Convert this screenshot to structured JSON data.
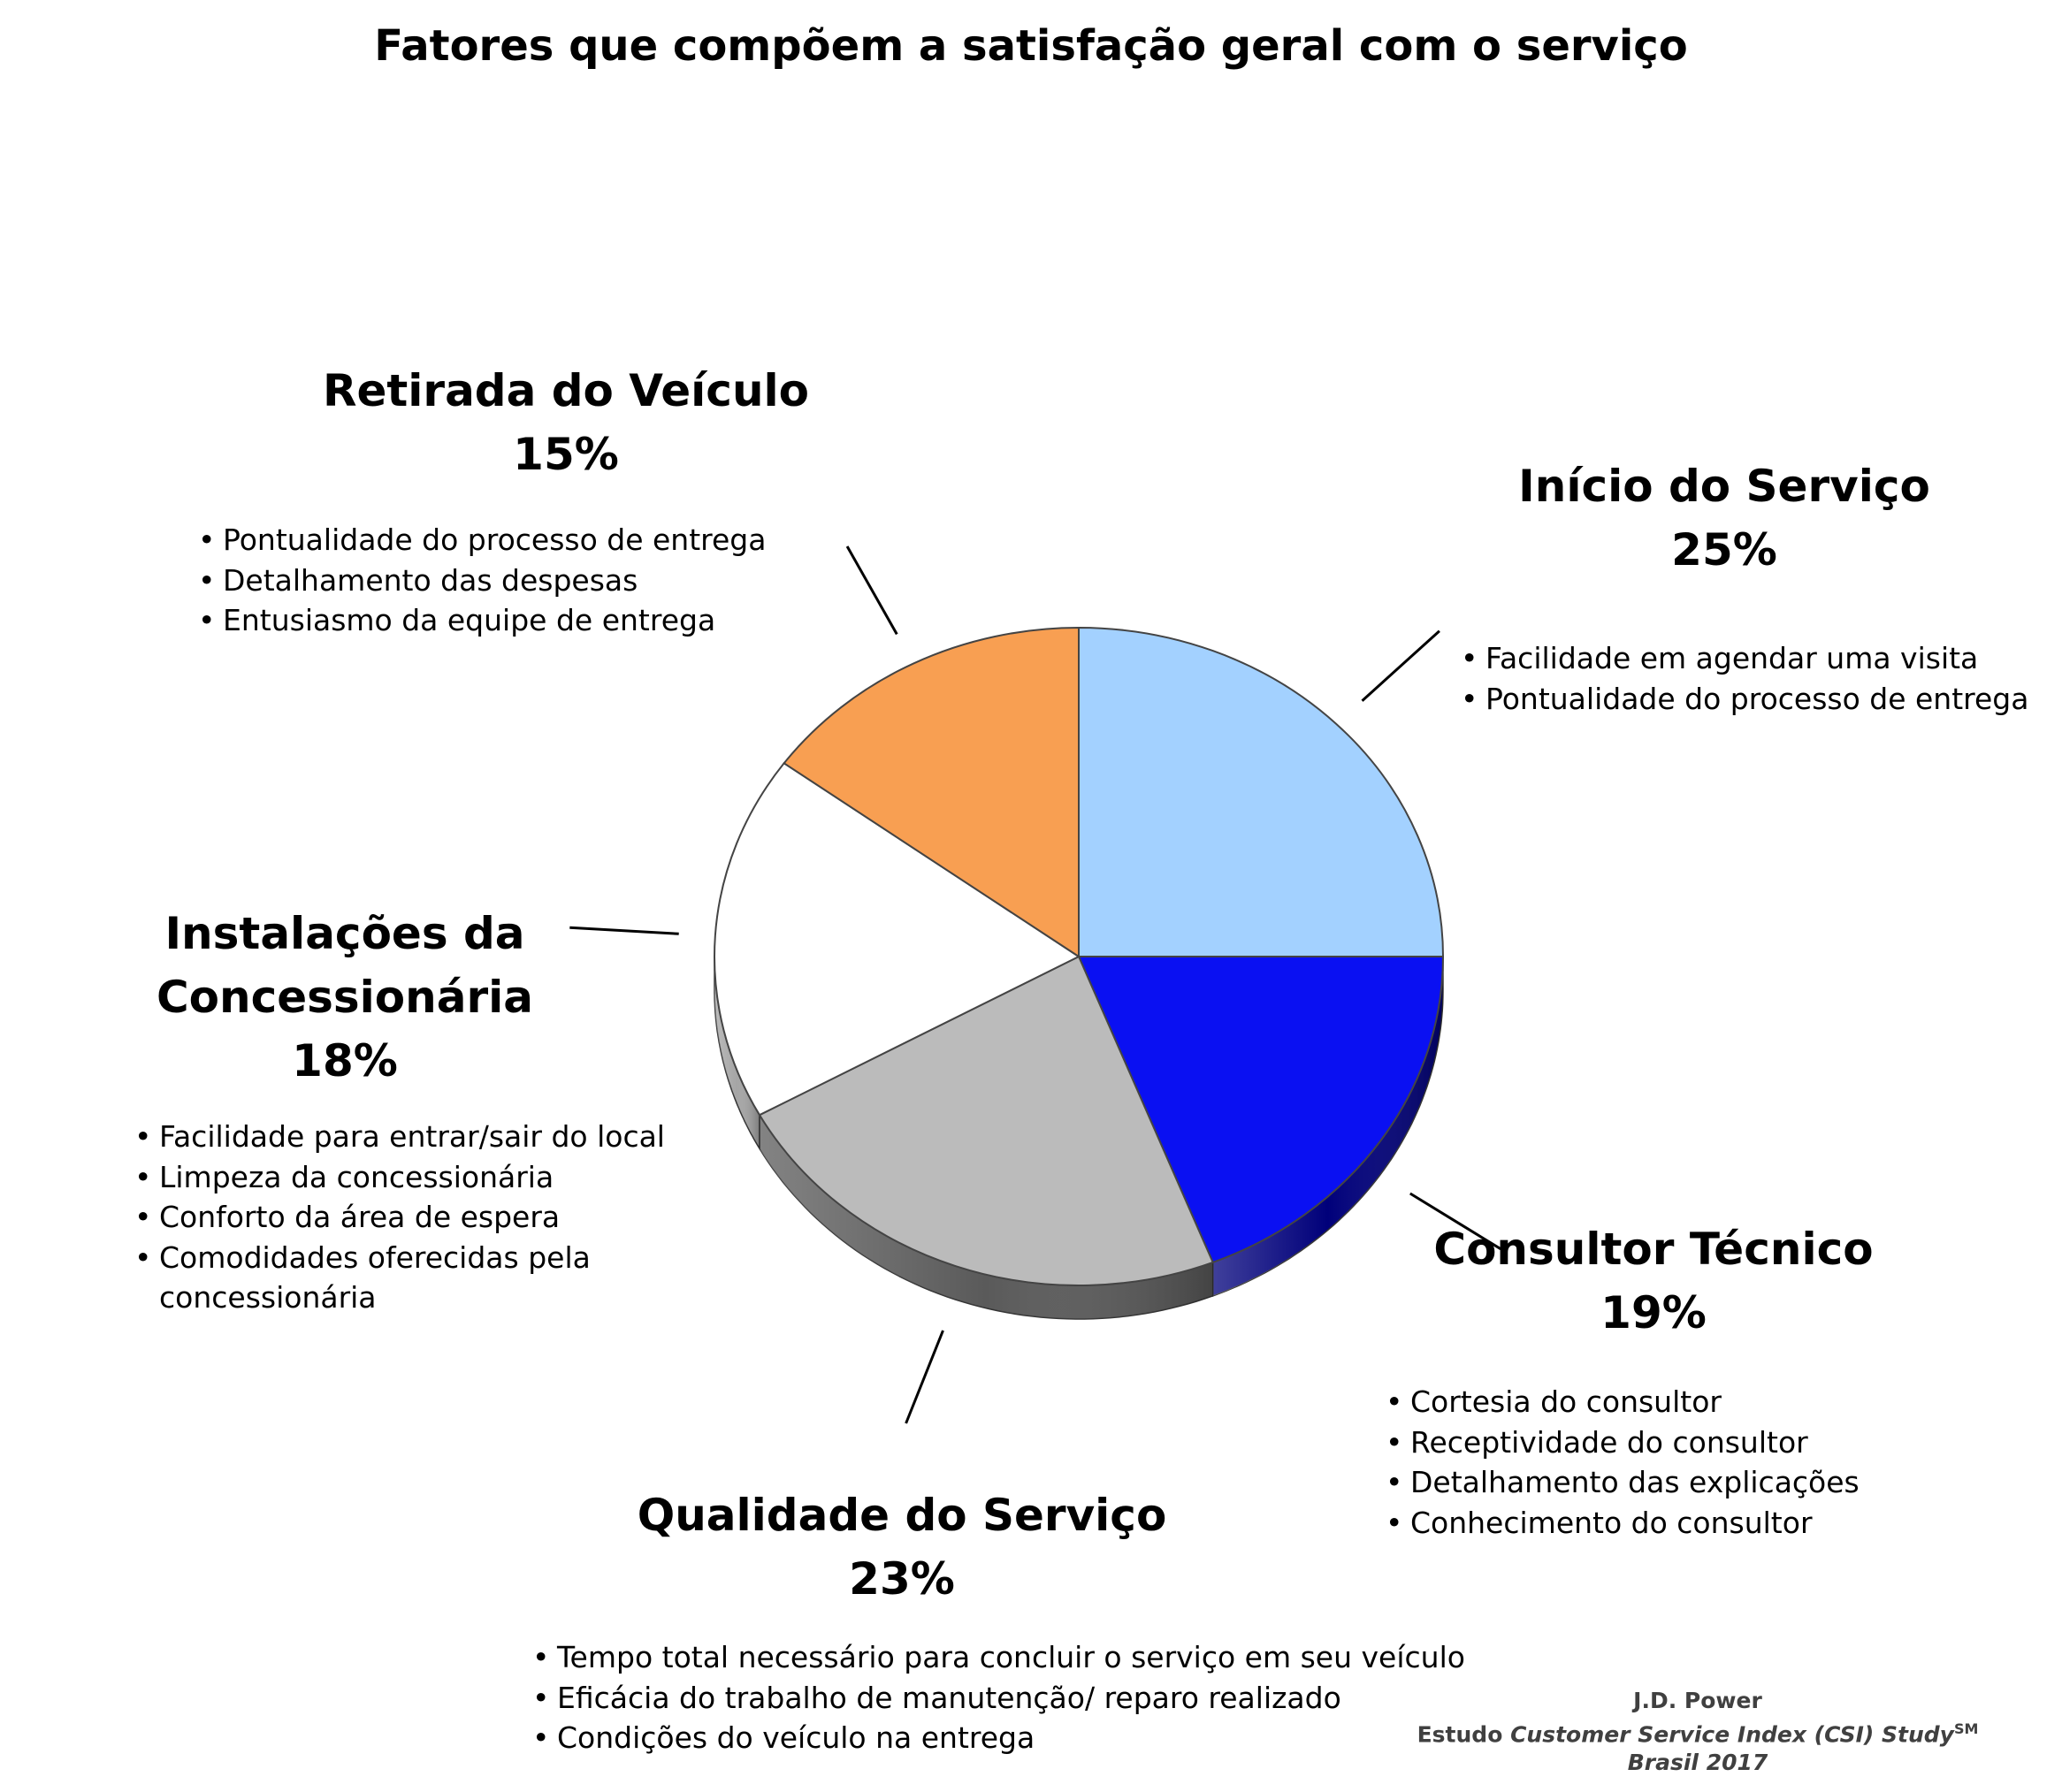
{
  "title": "Fatores que compõem a satisfação geral com o serviço",
  "chart_data": {
    "type": "pie",
    "title": "Fatores que compõem a satisfação geral com o serviço",
    "slices": [
      {
        "name": "Início do Serviço",
        "name_lines": [
          "Início do Serviço"
        ],
        "value": 25,
        "pct_label": "25%",
        "color": "#A3D1FF",
        "side_color": "#6E9ECF",
        "bullets": [
          "Facilidade em agendar uma visita",
          "Pontualidade do processo de entrega"
        ]
      },
      {
        "name": "Consultor Técnico",
        "name_lines": [
          "Consultor Técnico"
        ],
        "value": 19,
        "pct_label": "19%",
        "color": "#0A10F2",
        "side_color": "#00007A",
        "bullets": [
          "Cortesia do consultor",
          "Receptividade do consultor",
          "Detalhamento das  explicações",
          "Conhecimento do consultor"
        ]
      },
      {
        "name": "Qualidade do Serviço",
        "name_lines": [
          "Qualidade do Serviço"
        ],
        "value": 23,
        "pct_label": "23%",
        "color": "#BBBBBB",
        "side_color": "#5A5A5A",
        "bullets": [
          "Tempo total necessário para concluir o serviço em seu veículo",
          "Eficácia  do trabalho de manutenção/ reparo realizado",
          "Condições do veículo na entrega"
        ]
      },
      {
        "name": "Instalações da Concessionária",
        "name_lines": [
          "Instalações da",
          "Concessionária"
        ],
        "value": 18,
        "pct_label": "18%",
        "color": "#FFFFFF",
        "side_color": "#A5A5A5",
        "bullets": [
          "Facilidade para entrar/sair do local",
          "Limpeza da concessionária",
          "Conforto da área de espera",
          "Comodidades oferecidas pela",
          "concessionária"
        ]
      },
      {
        "name": "Retirada do Veículo",
        "name_lines": [
          "Retirada do Veículo"
        ],
        "value": 15,
        "pct_label": "15%",
        "color": "#F89F52",
        "side_color": "#B86A28",
        "bullets": [
          "Pontualidade do processo de entrega",
          "Detalhamento das despesas",
          "Entusiasmo da equipe de entrega"
        ]
      }
    ]
  },
  "source": {
    "org": "J.D. Power",
    "prefix": "Estudo ",
    "study": "Customer Service Index (CSI) Study",
    "sup": "SM",
    "suffix": " Brasil 2017"
  }
}
